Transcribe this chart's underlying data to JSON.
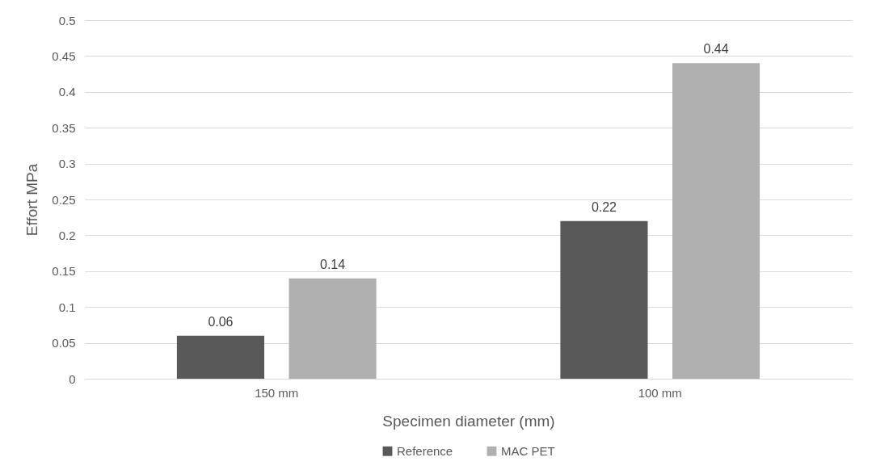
{
  "chart_data": {
    "type": "bar",
    "xlabel": "Specimen diameter (mm)",
    "ylabel": "Effort MPa",
    "categories": [
      "150 mm",
      "100 mm"
    ],
    "series": [
      {
        "name": "Reference",
        "color": "#595959",
        "values": [
          0.06,
          0.22
        ]
      },
      {
        "name": "MAC PET",
        "color": "#afafaf",
        "values": [
          0.14,
          0.44
        ]
      }
    ],
    "ylim": [
      0,
      0.5
    ],
    "yticks": [
      0,
      0.05,
      0.1,
      0.15,
      0.2,
      0.25,
      0.3,
      0.35,
      0.4,
      0.45,
      0.5
    ],
    "grid": "y",
    "legend": "bottom",
    "data_labels": true
  }
}
